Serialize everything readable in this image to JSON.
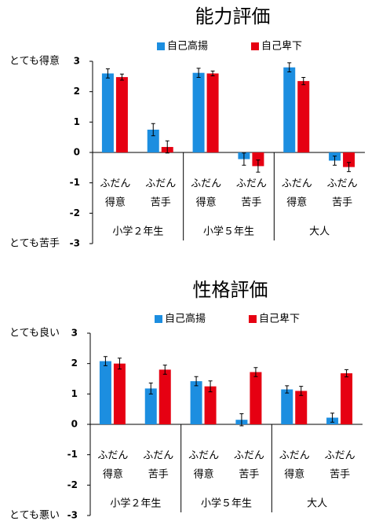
{
  "chart_data": [
    {
      "type": "bar",
      "title": "能力評価",
      "ylabel_top": "とても得意",
      "ylabel_bottom": "とても苦手",
      "categories": [
        [
          "ふだん",
          "得意"
        ],
        [
          "ふだん",
          "苦手"
        ],
        [
          "ふだん",
          "得意"
        ],
        [
          "ふだん",
          "苦手"
        ],
        [
          "ふだん",
          "得意"
        ],
        [
          "ふだん",
          "苦手"
        ]
      ],
      "category_colors": [
        "#2ca02c",
        "#e020e0",
        "#2ca02c",
        "#e020e0",
        "#2ca02c",
        "#e020e0"
      ],
      "groups": [
        "小学２年生",
        "小学５年生",
        "大人"
      ],
      "series": [
        {
          "name": "自己高揚",
          "color": "#1c8ee0",
          "values": [
            2.6,
            0.75,
            2.62,
            -0.22,
            2.8,
            -0.27
          ],
          "errors": [
            0.15,
            0.2,
            0.15,
            0.2,
            0.15,
            0.15
          ]
        },
        {
          "name": "自己卑下",
          "color": "#e60012",
          "values": [
            2.48,
            0.18,
            2.6,
            -0.45,
            2.35,
            -0.48
          ],
          "errors": [
            0.1,
            0.2,
            0.08,
            0.2,
            0.12,
            0.15
          ]
        }
      ],
      "ylim": [
        -3,
        3
      ],
      "yticks": [
        -3,
        -2,
        -1,
        0,
        1,
        2,
        3
      ]
    },
    {
      "type": "bar",
      "title": "性格評価",
      "ylabel_top": "とても良い",
      "ylabel_bottom": "とても悪い",
      "categories": [
        [
          "ふだん",
          "得意"
        ],
        [
          "ふだん",
          "苦手"
        ],
        [
          "ふだん",
          "得意"
        ],
        [
          "ふだん",
          "苦手"
        ],
        [
          "ふだん",
          "得意"
        ],
        [
          "ふだん",
          "苦手"
        ]
      ],
      "category_colors": [
        "#2ca02c",
        "#e020e0",
        "#2ca02c",
        "#e020e0",
        "#2ca02c",
        "#e020e0"
      ],
      "groups": [
        "小学２年生",
        "小学５年生",
        "大人"
      ],
      "series": [
        {
          "name": "自己高揚",
          "color": "#1c8ee0",
          "values": [
            2.08,
            1.18,
            1.42,
            0.15,
            1.15,
            0.22
          ],
          "errors": [
            0.15,
            0.18,
            0.15,
            0.2,
            0.12,
            0.15
          ]
        },
        {
          "name": "自己卑下",
          "color": "#e60012",
          "values": [
            2.0,
            1.8,
            1.25,
            1.72,
            1.1,
            1.68
          ],
          "errors": [
            0.18,
            0.15,
            0.18,
            0.15,
            0.15,
            0.12
          ]
        }
      ],
      "ylim": [
        -3,
        3
      ],
      "yticks": [
        -3,
        -2,
        -1,
        0,
        1,
        2,
        3
      ]
    }
  ]
}
